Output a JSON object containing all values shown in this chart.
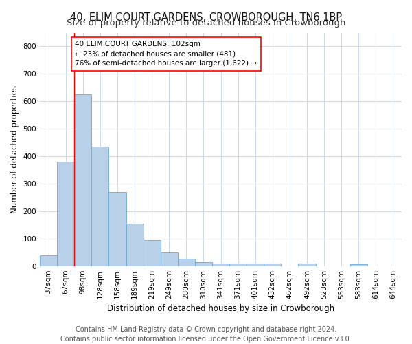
{
  "title": "40, ELIM COURT GARDENS, CROWBOROUGH, TN6 1BP",
  "subtitle": "Size of property relative to detached houses in Crowborough",
  "xlabel": "Distribution of detached houses by size in Crowborough",
  "ylabel": "Number of detached properties",
  "categories": [
    "37sqm",
    "67sqm",
    "98sqm",
    "128sqm",
    "158sqm",
    "189sqm",
    "219sqm",
    "249sqm",
    "280sqm",
    "310sqm",
    "341sqm",
    "371sqm",
    "401sqm",
    "432sqm",
    "462sqm",
    "492sqm",
    "523sqm",
    "553sqm",
    "583sqm",
    "614sqm",
    "644sqm"
  ],
  "values": [
    40,
    380,
    625,
    435,
    270,
    155,
    95,
    50,
    27,
    15,
    10,
    10,
    10,
    10,
    0,
    8,
    0,
    0,
    7,
    0,
    0
  ],
  "bar_color": "#b8d0e8",
  "bar_edge_color": "#6aaad4",
  "highlight_index": 2,
  "redline_x": 1.5,
  "ylim": [
    0,
    850
  ],
  "yticks": [
    0,
    100,
    200,
    300,
    400,
    500,
    600,
    700,
    800
  ],
  "annotation_line1": "40 ELIM COURT GARDENS: 102sqm",
  "annotation_line2": "← 23% of detached houses are smaller (481)",
  "annotation_line3": "76% of semi-detached houses are larger (1,622) →",
  "footer_line1": "Contains HM Land Registry data © Crown copyright and database right 2024.",
  "footer_line2": "Contains public sector information licensed under the Open Government Licence v3.0.",
  "background_color": "#ffffff",
  "grid_color": "#ccd8e8",
  "title_fontsize": 10.5,
  "subtitle_fontsize": 9.5,
  "axis_label_fontsize": 8.5,
  "tick_fontsize": 7.5,
  "annotation_fontsize": 7.5,
  "footer_fontsize": 7
}
